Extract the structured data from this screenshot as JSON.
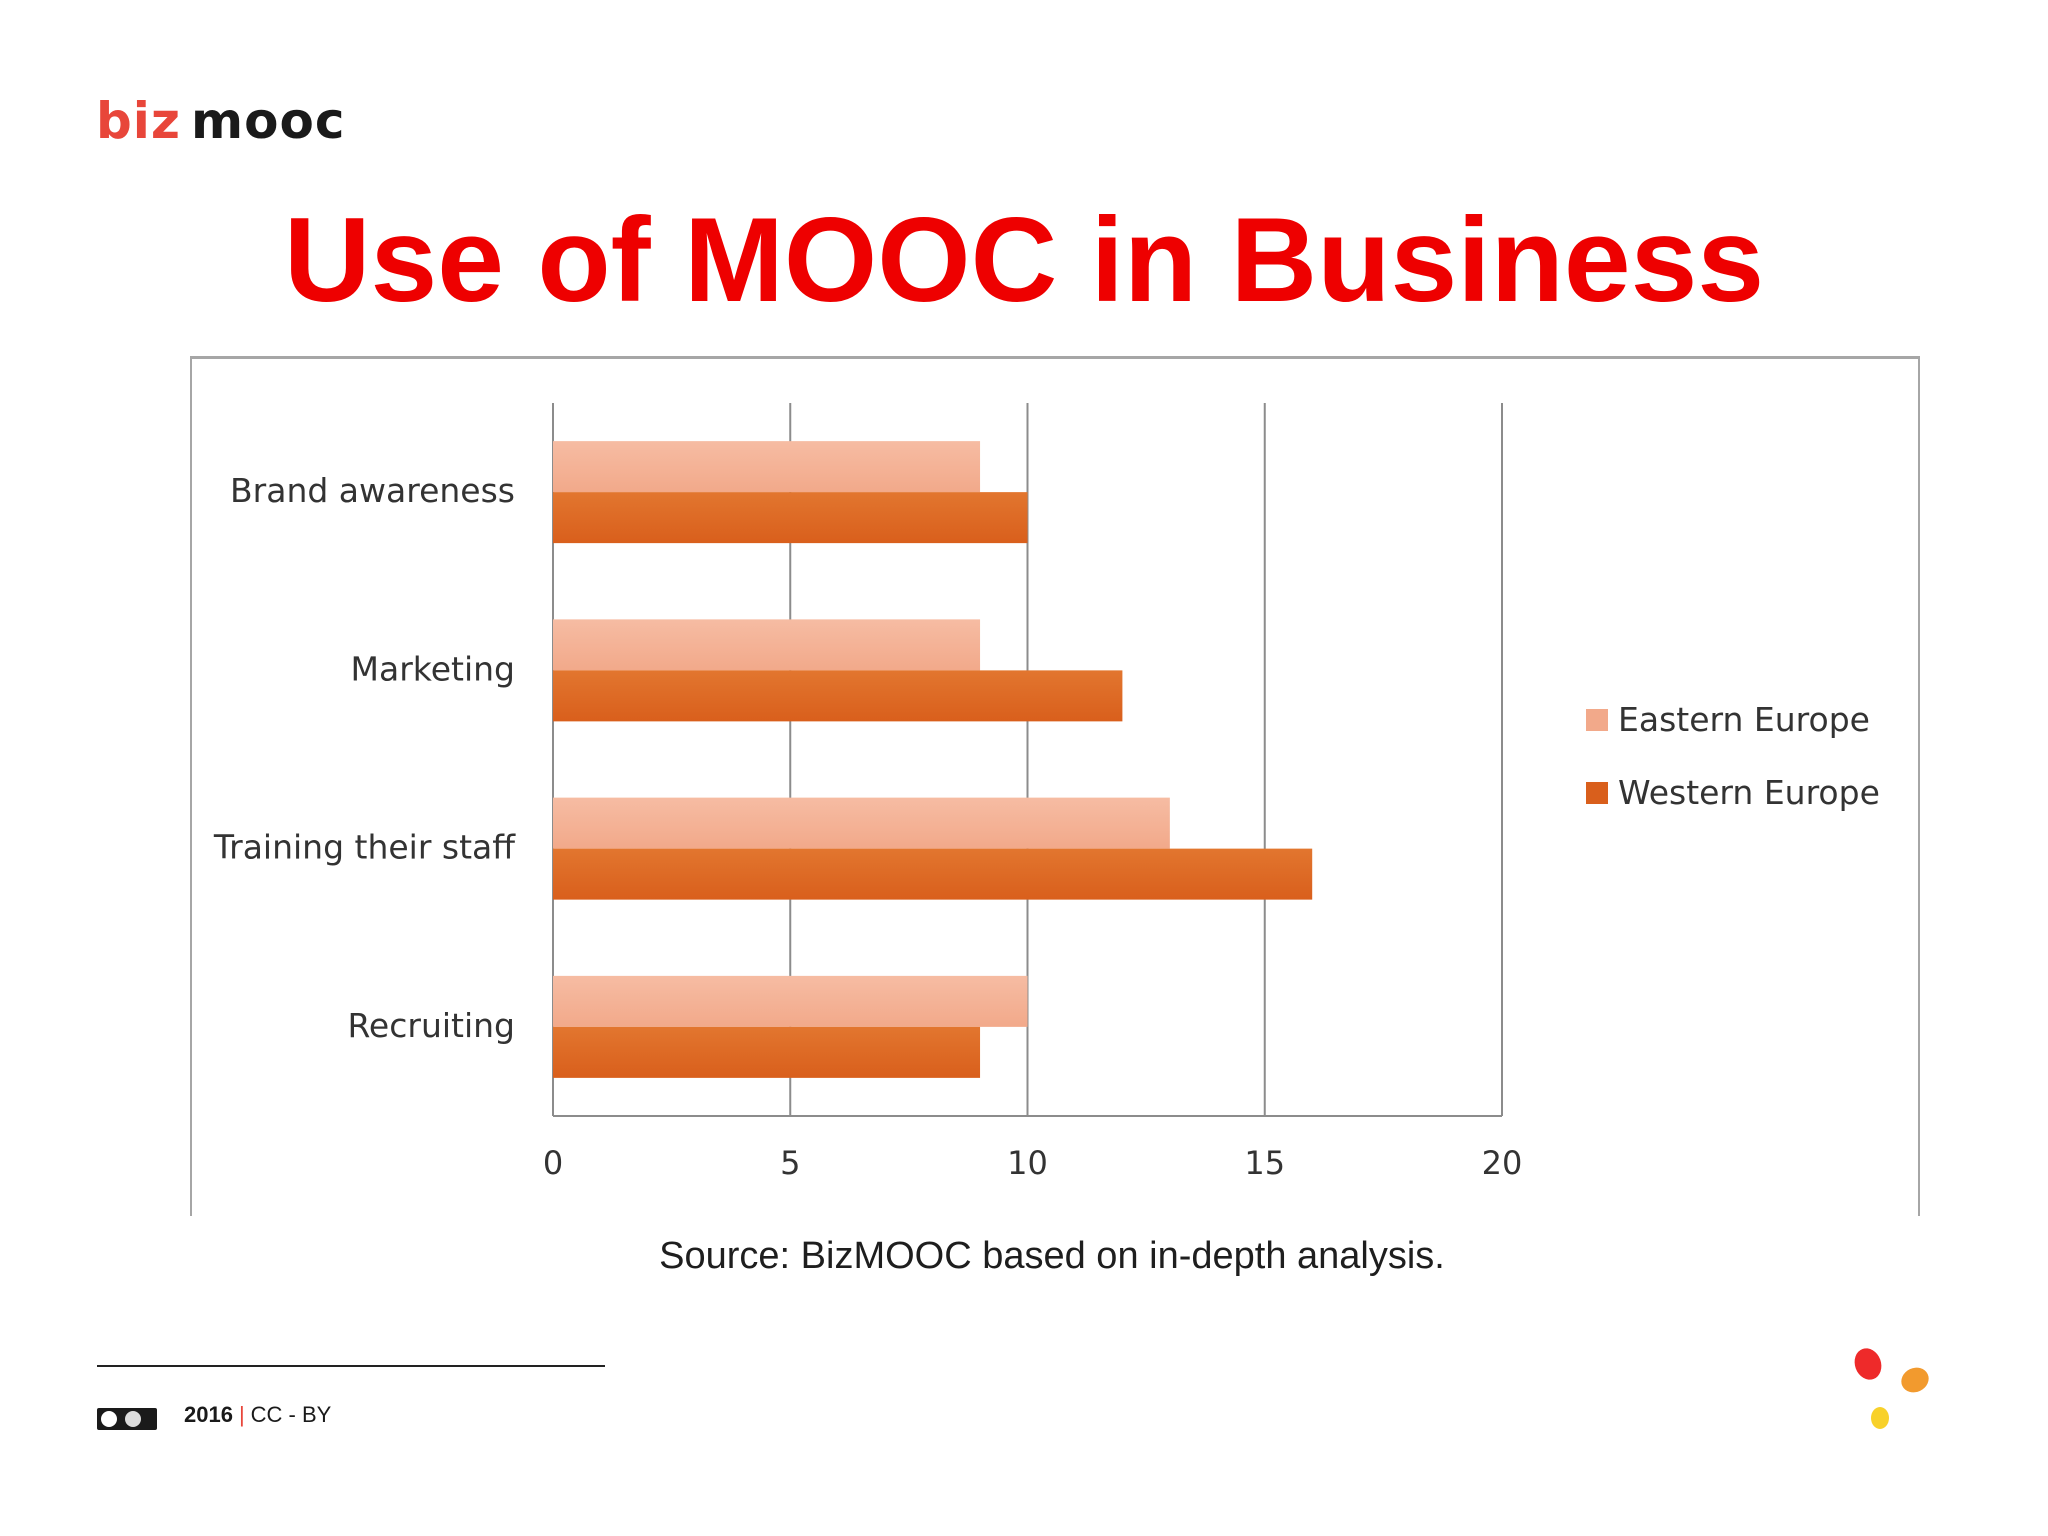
{
  "logo": {
    "biz": "biz",
    "mooc": "mooc"
  },
  "title": "Use of MOOC in Business",
  "source": "Source: BizMOOC based on in-depth analysis.",
  "footer": {
    "year": "2016",
    "separator": "|",
    "license": "CC - BY"
  },
  "colors": {
    "title": "#ee0000",
    "eastern": "#f2a98a",
    "western": "#d95f1c",
    "logo_accent": "#e8463a",
    "dot_red": "#ee2a2a",
    "dot_orange": "#f29a2e",
    "dot_yellow": "#f8d12a"
  },
  "chart_data": {
    "type": "bar",
    "orientation": "horizontal",
    "categories": [
      "Brand awareness",
      "Marketing",
      "Training their staff",
      "Recruiting"
    ],
    "series": [
      {
        "name": "Eastern Europe",
        "values": [
          9,
          9,
          13,
          10
        ]
      },
      {
        "name": "Western Europe",
        "values": [
          10,
          12,
          16,
          9
        ]
      }
    ],
    "xlim": [
      0,
      20
    ],
    "xticks": [
      "0",
      "5",
      "10",
      "15",
      "20"
    ],
    "grid": true,
    "legend_position": "right",
    "title": "",
    "xlabel": "",
    "ylabel": ""
  }
}
